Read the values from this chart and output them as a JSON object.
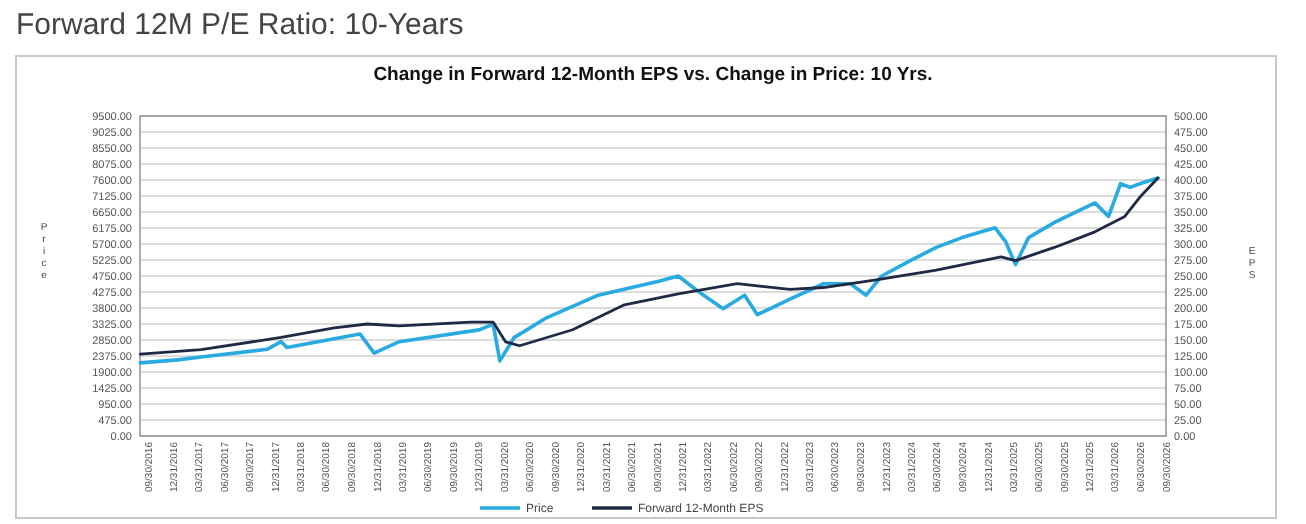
{
  "chart_data": {
    "type": "line",
    "title": "Forward 12M P/E Ratio: 10-Years",
    "subtitle": "Change in Forward 12-Month EPS vs. Change in Price: 10 Yrs.",
    "ylabel": "Price",
    "y2label": "EPS",
    "series": [
      {
        "name": "Price",
        "color": "#29abe2",
        "x": [
          "2016-09-02",
          "2017-01-15",
          "2017-04-08",
          "2017-12-01",
          "2018-01-20",
          "2018-02-10",
          "2018-10-30",
          "2018-12-20",
          "2019-03-20",
          "2020-01-01",
          "2020-02-20",
          "2020-03-15",
          "2020-05-05",
          "2020-08-25",
          "2021-03-03",
          "2021-10-10",
          "2021-12-15",
          "2022-02-25",
          "2022-05-25",
          "2022-08-10",
          "2022-09-25",
          "2023-01-20",
          "2023-05-20",
          "2023-08-25",
          "2023-10-20",
          "2023-12-15",
          "2024-03-25",
          "2024-06-28",
          "2024-09-28",
          "2025-01-25",
          "2025-03-03",
          "2025-04-08",
          "2025-05-25",
          "2025-08-28",
          "2026-01-18",
          "2026-03-08",
          "2026-04-20",
          "2026-05-25",
          "2026-06-28",
          "2026-09-01"
        ],
        "values": [
          2170,
          2260,
          2345,
          2574,
          2800,
          2630,
          3030,
          2460,
          2800,
          3150,
          3320,
          2230,
          2920,
          3490,
          4180,
          4600,
          4750,
          4290,
          3780,
          4180,
          3600,
          4060,
          4520,
          4520,
          4180,
          4750,
          5200,
          5600,
          5890,
          6180,
          5780,
          5090,
          5890,
          6350,
          6920,
          6520,
          7490,
          7380,
          7490,
          7660
        ]
      },
      {
        "name": "Forward 12-Month EPS",
        "color": "#1f2a44",
        "axis": "y2",
        "x": [
          "2016-09-02",
          "2017-04-08",
          "2018-01-20",
          "2018-07-30",
          "2018-11-25",
          "2019-03-20",
          "2019-12-01",
          "2020-02-20",
          "2020-04-05",
          "2020-05-25",
          "2020-12-01",
          "2021-06-05",
          "2021-12-15",
          "2022-07-15",
          "2023-01-20",
          "2023-05-20",
          "2023-11-25",
          "2024-06-28",
          "2025-02-15",
          "2025-04-08",
          "2025-08-28",
          "2026-01-18",
          "2026-05-05",
          "2026-06-28",
          "2026-09-01"
        ],
        "values": [
          128,
          135,
          154,
          169,
          175,
          172,
          178,
          178,
          147,
          141,
          166,
          205,
          222,
          238,
          229,
          232,
          244,
          259,
          280,
          274,
          295,
          319,
          343,
          373,
          403
        ]
      }
    ],
    "xlim": [
      "2016-09-01",
      "2026-09-30"
    ],
    "xticks": [
      {
        "value": "2016-09-30",
        "label": "09/30/2016"
      },
      {
        "value": "2016-12-31",
        "label": "12/31/2016"
      },
      {
        "value": "2017-03-31",
        "label": "03/31/2017"
      },
      {
        "value": "2017-06-30",
        "label": "06/30/2017"
      },
      {
        "value": "2017-09-30",
        "label": "09/30/2017"
      },
      {
        "value": "2017-12-31",
        "label": "12/31/2017"
      },
      {
        "value": "2018-03-31",
        "label": "03/31/2018"
      },
      {
        "value": "2018-06-30",
        "label": "06/30/2018"
      },
      {
        "value": "2018-09-30",
        "label": "09/30/2018"
      },
      {
        "value": "2018-12-31",
        "label": "12/31/2018"
      },
      {
        "value": "2019-03-31",
        "label": "03/31/2019"
      },
      {
        "value": "2019-06-30",
        "label": "06/30/2019"
      },
      {
        "value": "2019-09-30",
        "label": "09/30/2019"
      },
      {
        "value": "2019-12-31",
        "label": "12/31/2019"
      },
      {
        "value": "2020-03-31",
        "label": "03/31/2020"
      },
      {
        "value": "2020-06-30",
        "label": "06/30/2020"
      },
      {
        "value": "2020-09-30",
        "label": "09/30/2020"
      },
      {
        "value": "2020-12-31",
        "label": "12/31/2020"
      },
      {
        "value": "2021-03-31",
        "label": "03/31/2021"
      },
      {
        "value": "2021-06-30",
        "label": "06/30/2021"
      },
      {
        "value": "2021-09-30",
        "label": "09/30/2021"
      },
      {
        "value": "2021-12-31",
        "label": "12/31/2021"
      },
      {
        "value": "2022-03-31",
        "label": "03/31/2022"
      },
      {
        "value": "2022-06-30",
        "label": "06/30/2022"
      },
      {
        "value": "2022-09-30",
        "label": "09/30/2022"
      },
      {
        "value": "2022-12-31",
        "label": "12/31/2022"
      },
      {
        "value": "2023-03-31",
        "label": "03/31/2023"
      },
      {
        "value": "2023-06-30",
        "label": "06/30/2023"
      },
      {
        "value": "2023-09-30",
        "label": "09/30/2023"
      },
      {
        "value": "2023-12-31",
        "label": "12/31/2023"
      },
      {
        "value": "2024-03-31",
        "label": "03/31/2024"
      },
      {
        "value": "2024-06-30",
        "label": "06/30/2024"
      },
      {
        "value": "2024-09-30",
        "label": "09/30/2024"
      },
      {
        "value": "2024-12-31",
        "label": "12/31/2024"
      },
      {
        "value": "2025-03-31",
        "label": "03/31/2025"
      },
      {
        "value": "2025-06-30",
        "label": "06/30/2025"
      },
      {
        "value": "2025-09-30",
        "label": "09/30/2025"
      },
      {
        "value": "2025-12-31",
        "label": "12/31/2025"
      },
      {
        "value": "2026-03-31",
        "label": "03/31/2026"
      },
      {
        "value": "2026-06-30",
        "label": "06/30/2026"
      },
      {
        "value": "2026-09-30",
        "label": "09/30/2026"
      }
    ],
    "ylim": [
      0,
      9500
    ],
    "yticks": [
      {
        "value": 0,
        "label": "0.00"
      },
      {
        "value": 475,
        "label": "475.00"
      },
      {
        "value": 950,
        "label": "950.00"
      },
      {
        "value": 1425,
        "label": "1425.00"
      },
      {
        "value": 1900,
        "label": "1900.00"
      },
      {
        "value": 2375,
        "label": "2375.00"
      },
      {
        "value": 2850,
        "label": "2850.00"
      },
      {
        "value": 3325,
        "label": "3325.00"
      },
      {
        "value": 3800,
        "label": "3800.00"
      },
      {
        "value": 4275,
        "label": "4275.00"
      },
      {
        "value": 4750,
        "label": "4750.00"
      },
      {
        "value": 5225,
        "label": "5225.00"
      },
      {
        "value": 5700,
        "label": "5700.00"
      },
      {
        "value": 6175,
        "label": "6175.00"
      },
      {
        "value": 6650,
        "label": "6650.00"
      },
      {
        "value": 7125,
        "label": "7125.00"
      },
      {
        "value": 7600,
        "label": "7600.00"
      },
      {
        "value": 8075,
        "label": "8075.00"
      },
      {
        "value": 8550,
        "label": "8550.00"
      },
      {
        "value": 9025,
        "label": "9025.00"
      },
      {
        "value": 9500,
        "label": "9500.00"
      }
    ],
    "y2lim": [
      0,
      500
    ],
    "y2ticks": [
      {
        "value": 0,
        "label": "0.00"
      },
      {
        "value": 25,
        "label": "25.00"
      },
      {
        "value": 50,
        "label": "50.00"
      },
      {
        "value": 75,
        "label": "75.00"
      },
      {
        "value": 100,
        "label": "100.00"
      },
      {
        "value": 125,
        "label": "125.00"
      },
      {
        "value": 150,
        "label": "150.00"
      },
      {
        "value": 175,
        "label": "175.00"
      },
      {
        "value": 200,
        "label": "200.00"
      },
      {
        "value": 225,
        "label": "225.00"
      },
      {
        "value": 250,
        "label": "250.00"
      },
      {
        "value": 275,
        "label": "275.00"
      },
      {
        "value": 300,
        "label": "300.00"
      },
      {
        "value": 325,
        "label": "325.00"
      },
      {
        "value": 350,
        "label": "350.00"
      },
      {
        "value": 375,
        "label": "375.00"
      },
      {
        "value": 400,
        "label": "400.00"
      },
      {
        "value": 425,
        "label": "425.00"
      },
      {
        "value": 450,
        "label": "450.00"
      },
      {
        "value": 475,
        "label": "475.00"
      },
      {
        "value": 500,
        "label": "500.00"
      }
    ],
    "grid": "y",
    "legend": "bottom",
    "marker": "none",
    "line_style": "solid"
  }
}
